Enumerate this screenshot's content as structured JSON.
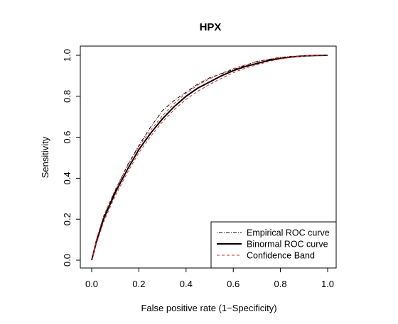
{
  "chart_data": {
    "type": "line",
    "title": "HPX",
    "xlabel": "False positive rate (1−Specificity)",
    "ylabel": "Sensitivity",
    "xlim": [
      0,
      1
    ],
    "ylim": [
      0,
      1
    ],
    "x_ticks": [
      "0.0",
      "0.2",
      "0.4",
      "0.6",
      "0.8",
      "1.0"
    ],
    "y_ticks": [
      "0.0",
      "0.2",
      "0.4",
      "0.6",
      "0.8",
      "1.0"
    ],
    "grid": false,
    "legend_position": "bottom-right",
    "x": [
      0.0,
      0.02,
      0.05,
      0.1,
      0.15,
      0.2,
      0.25,
      0.3,
      0.35,
      0.4,
      0.45,
      0.5,
      0.55,
      0.6,
      0.65,
      0.7,
      0.75,
      0.8,
      0.85,
      0.9,
      0.95,
      1.0
    ],
    "series": [
      {
        "name": "Empirical ROC curve",
        "style": "dotdash",
        "color": "#000000",
        "values": [
          0.0,
          0.1,
          0.21,
          0.34,
          0.46,
          0.56,
          0.65,
          0.73,
          0.78,
          0.82,
          0.86,
          0.89,
          0.91,
          0.93,
          0.95,
          0.97,
          0.98,
          0.99,
          0.995,
          0.998,
          1.0,
          1.0
        ]
      },
      {
        "name": "Binormal ROC curve",
        "style": "solid",
        "color": "#000000",
        "values": [
          0.0,
          0.09,
          0.2,
          0.33,
          0.44,
          0.54,
          0.62,
          0.69,
          0.75,
          0.8,
          0.84,
          0.87,
          0.9,
          0.925,
          0.945,
          0.96,
          0.975,
          0.985,
          0.992,
          0.997,
          0.999,
          1.0
        ]
      },
      {
        "name": "Confidence Band",
        "style": "dashed",
        "color": "#d62728",
        "values": [
          0.0,
          0.1,
          0.215,
          0.345,
          0.455,
          0.555,
          0.635,
          0.705,
          0.765,
          0.815,
          0.855,
          0.885,
          0.912,
          0.935,
          0.953,
          0.967,
          0.98,
          0.988,
          0.994,
          0.998,
          1.0,
          1.0
        ]
      },
      {
        "name": "Confidence Band",
        "style": "dashed",
        "color": "#d62728",
        "values": [
          0.0,
          0.08,
          0.185,
          0.315,
          0.425,
          0.525,
          0.605,
          0.675,
          0.735,
          0.785,
          0.825,
          0.858,
          0.888,
          0.915,
          0.937,
          0.953,
          0.97,
          0.982,
          0.99,
          0.996,
          0.999,
          1.0
        ]
      }
    ],
    "legend": [
      {
        "label": "Empirical ROC curve",
        "style": "dotdash",
        "color": "#000000"
      },
      {
        "label": "Binormal ROC curve",
        "style": "solid",
        "color": "#000000"
      },
      {
        "label": "Confidence Band",
        "style": "dashed",
        "color": "#d62728"
      }
    ]
  }
}
